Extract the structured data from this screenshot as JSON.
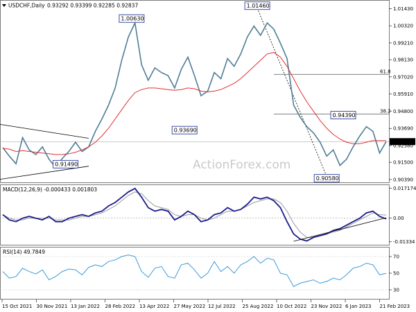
{
  "header": {
    "symbol": "USDCHF,Daily",
    "ohlc": "0.93292 0.93399 0.92285 0.92837"
  },
  "watermark": "ActionForex.com",
  "colors": {
    "candle": "#4e7d96",
    "sma": "#e03030",
    "macd_line": "#1a1a8c",
    "macd_signal": "#9a9a9a",
    "rsi": "#3a9ad9",
    "trendline": "#000000",
    "price_tag_bg": "#000000"
  },
  "chart_data": [
    {
      "type": "line",
      "panel": "price",
      "ylim": [
        0.9025,
        1.0185
      ],
      "yticks": [
        "1.01430",
        "1.00320",
        "0.99210",
        "0.98130",
        "0.97020",
        "0.95910",
        "0.94800",
        "0.93690",
        "0.92580",
        "0.91500",
        "0.90390"
      ],
      "ytick_values": [
        1.0143,
        1.0032,
        0.9921,
        0.9813,
        0.9702,
        0.9591,
        0.948,
        0.9369,
        0.9258,
        0.915,
        0.9039
      ],
      "last_price": "0.92837",
      "xlabels": [
        "15 Oct 2021",
        "30 Nov 2021",
        "13 Jan 2022",
        "28 Feb 2022",
        "13 Apr 2022",
        "27 May 2022",
        "12 Jul 2022",
        "25 Aug 2022",
        "10 Oct 2022",
        "23 Nov 2022",
        "6 Jan 2023",
        "21 Feb 2023"
      ],
      "series": [
        {
          "values": [
            0.9245,
            0.919,
            0.914,
            0.931,
            0.923,
            0.92,
            0.925,
            0.917,
            0.9115,
            0.9175,
            0.922,
            0.928,
            0.922,
            0.925,
            0.935,
            0.943,
            0.952,
            0.963,
            0.981,
            0.996,
            1.005,
            0.978,
            0.968,
            0.976,
            0.973,
            0.971,
            0.963,
            0.975,
            0.983,
            0.971,
            0.958,
            0.961,
            0.973,
            0.969,
            0.982,
            0.977,
            0.985,
            0.996,
            1.003,
            0.997,
            1.005,
            1.001,
            0.992,
            0.982,
            0.952,
            0.944,
            0.938,
            0.934,
            0.928,
            0.919,
            0.923,
            0.913,
            0.917,
            0.925,
            0.932,
            0.938,
            0.935,
            0.921,
            0.9284
          ]
        },
        {
          "values": [
            0.924,
            0.9235,
            0.922,
            0.9225,
            0.922,
            0.9215,
            0.921,
            0.9205,
            0.92,
            0.92,
            0.9205,
            0.9215,
            0.923,
            0.925,
            0.928,
            0.932,
            0.937,
            0.943,
            0.949,
            0.955,
            0.96,
            0.962,
            0.963,
            0.963,
            0.9625,
            0.962,
            0.9615,
            0.962,
            0.963,
            0.9625,
            0.961,
            0.9605,
            0.961,
            0.962,
            0.964,
            0.966,
            0.969,
            0.973,
            0.977,
            0.981,
            0.985,
            0.986,
            0.983,
            0.977,
            0.969,
            0.961,
            0.954,
            0.948,
            0.942,
            0.937,
            0.933,
            0.93,
            0.928,
            0.927,
            0.927,
            0.928,
            0.929,
            0.929,
            0.929
          ]
        }
      ],
      "annotations": [
        {
          "label": "1.01460",
          "x": 38.5,
          "y": 1.0146
        },
        {
          "label": "1.00630",
          "x": 19.5,
          "y": 1.0063
        },
        {
          "label": "0.93690",
          "x": 27.5,
          "y": 0.9369
        },
        {
          "label": "0.91490",
          "x": 9.5,
          "y": 0.9149
        },
        {
          "label": "0.94390",
          "x": 51.5,
          "y": 0.9439
        },
        {
          "label": "0.90580",
          "x": 49.0,
          "y": 0.9058
        }
      ],
      "fib_levels": [
        {
          "label": "61.8",
          "y": 0.9718
        },
        {
          "label": "38.2",
          "y": 0.9461
        }
      ]
    },
    {
      "type": "line",
      "panel": "macd",
      "title": "MACD(12,26,9) -0.000433 0.001803",
      "ylim": [
        -0.0148,
        0.0185
      ],
      "yticks": [
        "0.017174",
        "0.00",
        "-0.01334"
      ],
      "ytick_values": [
        0.017174,
        0,
        -0.01334
      ],
      "series": [
        {
          "values": [
            0.002,
            -0.001,
            -0.002,
            0.0,
            0.001,
            0.0,
            -0.001,
            0.001,
            -0.002,
            -0.002,
            0.0,
            0.001,
            0.002,
            0.001,
            0.003,
            0.004,
            0.007,
            0.009,
            0.012,
            0.015,
            0.017,
            0.012,
            0.006,
            0.004,
            0.005,
            0.004,
            -0.001,
            0.001,
            0.004,
            0.002,
            -0.002,
            -0.001,
            0.002,
            0.003,
            0.006,
            0.004,
            0.005,
            0.008,
            0.012,
            0.011,
            0.012,
            0.01,
            0.006,
            -0.002,
            -0.009,
            -0.012,
            -0.013,
            -0.011,
            -0.01,
            -0.009,
            -0.007,
            -0.006,
            -0.004,
            -0.002,
            0.0,
            0.003,
            0.004,
            0.001,
            -0.0004
          ]
        },
        {
          "values": [
            0.002,
            0.0,
            -0.001,
            -0.001,
            0.0,
            0.0,
            0.0,
            0.0,
            -0.001,
            -0.001,
            -0.001,
            0.0,
            0.001,
            0.001,
            0.002,
            0.003,
            0.005,
            0.007,
            0.01,
            0.013,
            0.015,
            0.014,
            0.01,
            0.007,
            0.006,
            0.005,
            0.002,
            0.001,
            0.002,
            0.002,
            0.0,
            -0.001,
            0.0,
            0.002,
            0.004,
            0.004,
            0.005,
            0.007,
            0.009,
            0.01,
            0.011,
            0.011,
            0.009,
            0.004,
            -0.003,
            -0.008,
            -0.011,
            -0.011,
            -0.01,
            -0.009,
            -0.008,
            -0.007,
            -0.005,
            -0.003,
            -0.001,
            0.001,
            0.003,
            0.002,
            0.0018
          ]
        }
      ]
    },
    {
      "type": "line",
      "panel": "rsi",
      "title": "RSI(14) 49.7849",
      "ylim": [
        20,
        80
      ],
      "yticks": [
        "70",
        "50",
        "30"
      ],
      "ytick_values": [
        70,
        50,
        30
      ],
      "series": [
        {
          "values": [
            52,
            44,
            46,
            56,
            52,
            49,
            54,
            42,
            46,
            52,
            55,
            54,
            48,
            57,
            60,
            58,
            64,
            66,
            70,
            72,
            70,
            52,
            45,
            56,
            58,
            46,
            44,
            60,
            62,
            54,
            44,
            50,
            64,
            52,
            58,
            50,
            60,
            64,
            70,
            62,
            68,
            66,
            50,
            48,
            34,
            38,
            40,
            42,
            38,
            40,
            44,
            42,
            48,
            56,
            58,
            62,
            60,
            48,
            49.78
          ]
        }
      ]
    }
  ]
}
